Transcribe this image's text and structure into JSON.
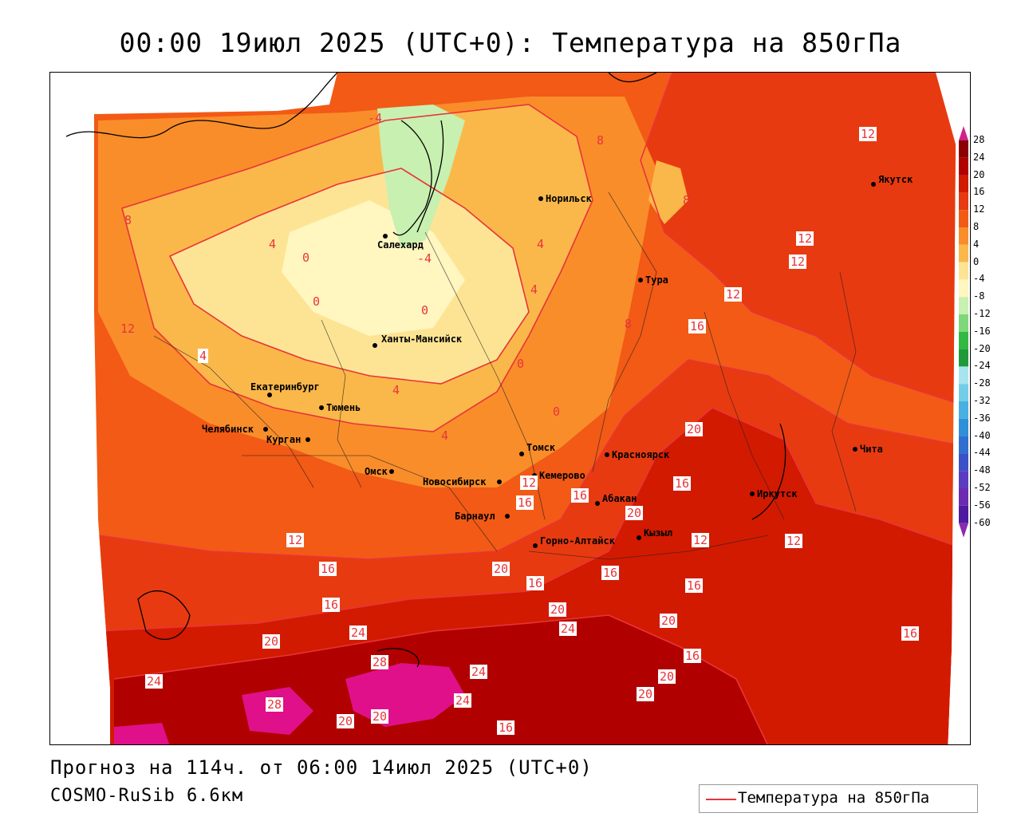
{
  "header": {
    "title": "00:00 19июл 2025 (UTC+0): Температура на 850гПа"
  },
  "footer": {
    "forecast": "Прогноз на 114ч. от 06:00 14июл 2025 (UTC+0)",
    "model": "COSMO-RuSib 6.6км"
  },
  "legend": {
    "label": "Температура на 850гПа",
    "line_color": "#e8343a"
  },
  "colorbar": {
    "ticks": [
      "28",
      "24",
      "20",
      "16",
      "12",
      "8",
      "4",
      "0",
      "-4",
      "-8",
      "-12",
      "-16",
      "-20",
      "-24",
      "-28",
      "-32",
      "-36",
      "-40",
      "-44",
      "-48",
      "-52",
      "-56",
      "-60"
    ],
    "colors": [
      "#8b0000",
      "#b00000",
      "#d21a00",
      "#e83a10",
      "#f25a16",
      "#f98d2a",
      "#fbb84a",
      "#fde494",
      "#fff6c0",
      "#c8f0b0",
      "#7ed87a",
      "#34b844",
      "#1f9a3a",
      "#a8e4f0",
      "#72cde8",
      "#48b0e0",
      "#2f8fd8",
      "#2f6fd0",
      "#3c50c8",
      "#5a3cc0",
      "#6c2ab0",
      "#4e1aa0",
      "#7a1aaa"
    ]
  },
  "cities": [
    {
      "name": "Салехард"
    },
    {
      "name": "Норильск"
    },
    {
      "name": "Якутск"
    },
    {
      "name": "Тура"
    },
    {
      "name": "Ханты-Мансийск"
    },
    {
      "name": "Екатеринбург"
    },
    {
      "name": "Тюмень"
    },
    {
      "name": "Челябинск"
    },
    {
      "name": "Курган"
    },
    {
      "name": "Омск"
    },
    {
      "name": "Новосибирск"
    },
    {
      "name": "Томск"
    },
    {
      "name": "Кемерово"
    },
    {
      "name": "Красноярск"
    },
    {
      "name": "Абакан"
    },
    {
      "name": "Барнаул"
    },
    {
      "name": "Горно-Алтайск"
    },
    {
      "name": "Кызыл"
    },
    {
      "name": "Иркутск"
    },
    {
      "name": "Чита"
    }
  ],
  "contour_labels": [
    "-4",
    "4",
    "8",
    "12",
    "8",
    "8",
    "4",
    "0",
    "0",
    "-4",
    "4",
    "4",
    "0",
    "8",
    "12",
    "12",
    "12",
    "16",
    "12",
    "4",
    "4",
    "0",
    "0",
    "20",
    "16",
    "16",
    "12",
    "16",
    "20",
    "12",
    "16",
    "12",
    "16",
    "20",
    "16",
    "16",
    "12",
    "24",
    "20",
    "16",
    "20",
    "16",
    "16",
    "20",
    "24",
    "28",
    "24",
    "20",
    "24",
    "20",
    "24",
    "28",
    "20",
    "16",
    "20"
  ]
}
